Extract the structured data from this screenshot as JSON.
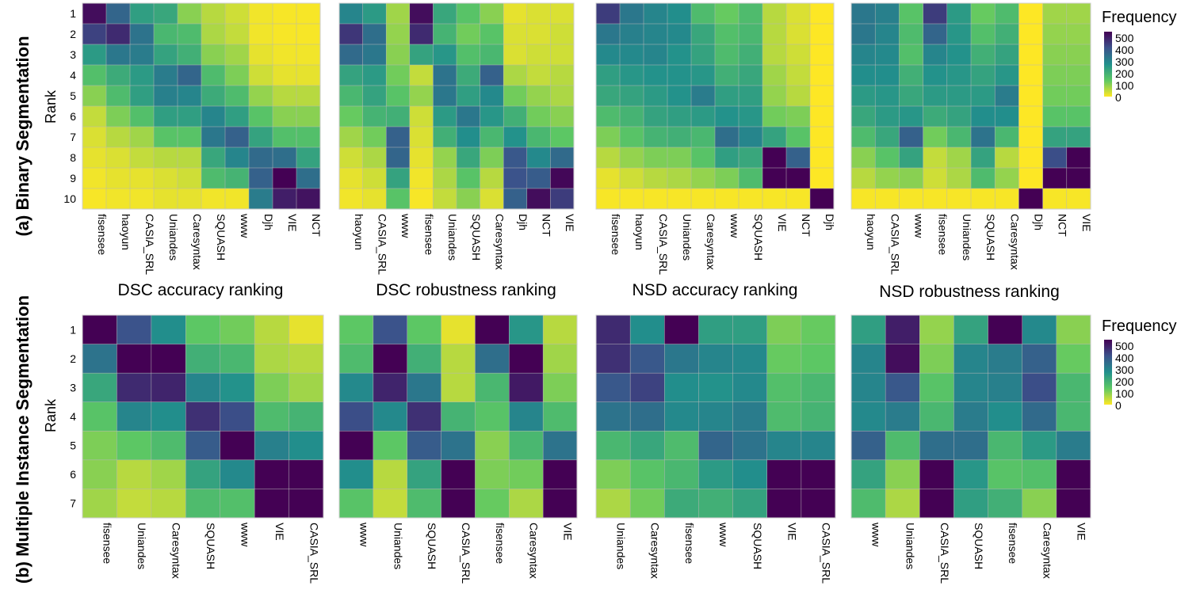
{
  "figure": {
    "row_labels": [
      "(a) Binary Segmentation",
      "(b) Multiple Instance Segmentation"
    ],
    "y_axis_label": "Rank",
    "legend_title": "Frequency",
    "legend_ticks": [
      "500",
      "400",
      "300",
      "200",
      "100",
      "0"
    ],
    "column_titles": [
      "DSC accuracy ranking",
      "DSC robustness ranking",
      "NSD accuracy ranking",
      "NSD robustness ranking"
    ]
  },
  "colors": {
    "scale": [
      "#440154",
      "#3b528b",
      "#21908c",
      "#5dc863",
      "#fde725"
    ]
  },
  "chart_data": [
    {
      "type": "heatmap",
      "section": "(a) Binary Segmentation",
      "title": "DSC accuracy ranking",
      "categories": [
        "fisensee",
        "haoyun",
        "CASIA_SRL",
        "Uniandes",
        "Caresyntax",
        "SQUASH",
        "www",
        "Djh",
        "VIE",
        "NCT"
      ],
      "ranks": [
        "1",
        "2",
        "3",
        "4",
        "5",
        "6",
        "7",
        "8",
        "9",
        "10"
      ],
      "values": [
        [
          530,
          370,
          240,
          220,
          100,
          60,
          40,
          10,
          5,
          5
        ],
        [
          440,
          480,
          340,
          180,
          170,
          70,
          50,
          10,
          5,
          5
        ],
        [
          250,
          330,
          320,
          230,
          200,
          100,
          80,
          20,
          10,
          10
        ],
        [
          160,
          210,
          250,
          320,
          370,
          170,
          110,
          40,
          20,
          20
        ],
        [
          100,
          170,
          240,
          310,
          300,
          210,
          170,
          90,
          60,
          60
        ],
        [
          50,
          110,
          160,
          240,
          240,
          300,
          240,
          150,
          100,
          100
        ],
        [
          30,
          60,
          80,
          150,
          150,
          330,
          380,
          230,
          160,
          160
        ],
        [
          20,
          30,
          50,
          60,
          60,
          220,
          300,
          360,
          350,
          230
        ],
        [
          10,
          20,
          20,
          30,
          40,
          170,
          190,
          380,
          560,
          350
        ],
        [
          5,
          10,
          10,
          20,
          20,
          10,
          10,
          320,
          500,
          520
        ]
      ],
      "colorbar_range": [
        0,
        550
      ]
    },
    {
      "type": "heatmap",
      "section": "(a) Binary Segmentation",
      "title": "DSC robustness ranking",
      "categories": [
        "haoyun",
        "CASIA_SRL",
        "www",
        "fisensee",
        "Uniandes",
        "SQUASH",
        "Caresyntax",
        "Djh",
        "NCT",
        "VIE"
      ],
      "ranks": [
        "1",
        "2",
        "3",
        "4",
        "5",
        "6",
        "7",
        "8",
        "9",
        "10"
      ],
      "values": [
        [
          300,
          250,
          80,
          530,
          220,
          150,
          100,
          20,
          30,
          30
        ],
        [
          460,
          350,
          90,
          480,
          190,
          120,
          150,
          30,
          30,
          40
        ],
        [
          360,
          330,
          100,
          230,
          260,
          160,
          180,
          30,
          40,
          40
        ],
        [
          230,
          250,
          120,
          50,
          340,
          210,
          380,
          70,
          50,
          60
        ],
        [
          180,
          230,
          150,
          90,
          330,
          240,
          290,
          120,
          90,
          70
        ],
        [
          130,
          190,
          200,
          40,
          250,
          330,
          260,
          200,
          120,
          100
        ],
        [
          80,
          120,
          380,
          30,
          200,
          280,
          180,
          270,
          180,
          140
        ],
        [
          40,
          70,
          370,
          20,
          90,
          220,
          110,
          400,
          290,
          360
        ],
        [
          20,
          40,
          230,
          10,
          70,
          150,
          60,
          410,
          390,
          540
        ],
        [
          10,
          20,
          150,
          5,
          50,
          100,
          30,
          380,
          530,
          450
        ]
      ],
      "colorbar_range": [
        0,
        550
      ]
    },
    {
      "type": "heatmap",
      "section": "(a) Binary Segmentation",
      "title": "NSD accuracy ranking",
      "categories": [
        "fisensee",
        "haoyun",
        "CASIA_SRL",
        "Uniandes",
        "Caresyntax",
        "www",
        "SQUASH",
        "VIE",
        "NCT",
        "Djh"
      ],
      "ranks": [
        "1",
        "2",
        "3",
        "4",
        "5",
        "6",
        "7",
        "8",
        "9",
        "10"
      ],
      "values": [
        [
          450,
          330,
          300,
          280,
          170,
          130,
          170,
          60,
          30,
          0
        ],
        [
          330,
          310,
          300,
          290,
          220,
          160,
          180,
          60,
          30,
          0
        ],
        [
          290,
          290,
          300,
          270,
          230,
          170,
          200,
          60,
          40,
          0
        ],
        [
          240,
          260,
          270,
          270,
          260,
          200,
          220,
          80,
          50,
          0
        ],
        [
          220,
          230,
          250,
          270,
          320,
          240,
          240,
          90,
          60,
          0
        ],
        [
          170,
          190,
          230,
          240,
          250,
          270,
          260,
          120,
          110,
          0
        ],
        [
          110,
          150,
          190,
          200,
          180,
          350,
          300,
          230,
          150,
          0
        ],
        [
          60,
          90,
          110,
          110,
          150,
          240,
          220,
          560,
          380,
          0
        ],
        [
          20,
          40,
          60,
          70,
          90,
          110,
          170,
          560,
          560,
          0
        ],
        [
          5,
          5,
          5,
          5,
          5,
          5,
          5,
          5,
          5,
          560
        ]
      ],
      "colorbar_range": [
        0,
        550
      ]
    },
    {
      "type": "heatmap",
      "section": "(a) Binary Segmentation",
      "title": "NSD robustness ranking",
      "categories": [
        "haoyun",
        "CASIA_SRL",
        "www",
        "fisensee",
        "Uniandes",
        "SQUASH",
        "Caresyntax",
        "Djh",
        "NCT",
        "VIE"
      ],
      "ranks": [
        "1",
        "2",
        "3",
        "4",
        "5",
        "6",
        "7",
        "8",
        "9",
        "10"
      ],
      "values": [
        [
          330,
          310,
          150,
          450,
          250,
          130,
          170,
          0,
          80,
          80
        ],
        [
          330,
          300,
          170,
          370,
          260,
          160,
          200,
          0,
          90,
          90
        ],
        [
          300,
          290,
          160,
          300,
          270,
          200,
          230,
          0,
          100,
          100
        ],
        [
          280,
          280,
          200,
          270,
          260,
          230,
          260,
          0,
          110,
          110
        ],
        [
          250,
          260,
          220,
          250,
          250,
          250,
          320,
          0,
          120,
          120
        ],
        [
          220,
          250,
          260,
          210,
          230,
          280,
          280,
          0,
          150,
          150
        ],
        [
          170,
          220,
          380,
          120,
          180,
          340,
          180,
          0,
          230,
          230
        ],
        [
          100,
          150,
          230,
          50,
          80,
          230,
          60,
          0,
          420,
          560
        ],
        [
          60,
          90,
          100,
          40,
          70,
          170,
          90,
          0,
          560,
          560
        ],
        [
          5,
          5,
          5,
          5,
          5,
          5,
          5,
          560,
          5,
          5
        ]
      ],
      "colorbar_range": [
        0,
        550
      ]
    },
    {
      "type": "heatmap",
      "section": "(b) Multiple Instance Segmentation",
      "title": "DSC accuracy ranking",
      "categories": [
        "fisensee",
        "Uniandes",
        "Caresyntax",
        "SQUASH",
        "www",
        "VIE",
        "CASIA_SRL"
      ],
      "ranks": [
        "1",
        "2",
        "3",
        "4",
        "5",
        "6",
        "7"
      ],
      "values": [
        [
          560,
          410,
          280,
          140,
          120,
          60,
          20
        ],
        [
          340,
          560,
          560,
          200,
          180,
          70,
          60
        ],
        [
          220,
          480,
          490,
          300,
          270,
          110,
          80
        ],
        [
          150,
          300,
          280,
          470,
          420,
          170,
          190
        ],
        [
          110,
          140,
          170,
          390,
          560,
          310,
          280
        ],
        [
          100,
          60,
          80,
          230,
          290,
          560,
          560
        ],
        [
          80,
          50,
          60,
          170,
          160,
          560,
          560
        ]
      ],
      "colorbar_range": [
        0,
        550
      ]
    },
    {
      "type": "heatmap",
      "section": "(b) Multiple Instance Segmentation",
      "title": "DSC robustness ranking",
      "categories": [
        "www",
        "Uniandes",
        "SQUASH",
        "CASIA_SRL",
        "fisensee",
        "Caresyntax",
        "VIE"
      ],
      "ranks": [
        "1",
        "2",
        "3",
        "4",
        "5",
        "6",
        "7"
      ],
      "values": [
        [
          140,
          410,
          140,
          20,
          560,
          260,
          60
        ],
        [
          170,
          560,
          200,
          60,
          350,
          560,
          80
        ],
        [
          290,
          490,
          330,
          60,
          180,
          510,
          110
        ],
        [
          420,
          290,
          470,
          190,
          150,
          300,
          170
        ],
        [
          560,
          140,
          390,
          340,
          100,
          180,
          340
        ],
        [
          280,
          60,
          230,
          560,
          110,
          120,
          560
        ],
        [
          150,
          50,
          170,
          560,
          130,
          70,
          560
        ]
      ],
      "colorbar_range": [
        0,
        550
      ]
    },
    {
      "type": "heatmap",
      "section": "(b) Multiple Instance Segmentation",
      "title": "NSD accuracy ranking",
      "categories": [
        "Uniandes",
        "Caresyntax",
        "fisensee",
        "www",
        "SQUASH",
        "VIE",
        "CASIA_SRL"
      ],
      "ranks": [
        "1",
        "2",
        "3",
        "4",
        "5",
        "6",
        "7"
      ],
      "values": [
        [
          480,
          280,
          560,
          240,
          240,
          110,
          130
        ],
        [
          470,
          400,
          330,
          300,
          290,
          130,
          140
        ],
        [
          400,
          440,
          280,
          270,
          290,
          160,
          180
        ],
        [
          340,
          350,
          290,
          300,
          320,
          170,
          190
        ],
        [
          180,
          220,
          170,
          370,
          340,
          300,
          300
        ],
        [
          110,
          150,
          180,
          250,
          280,
          560,
          560
        ],
        [
          70,
          120,
          210,
          200,
          230,
          560,
          560
        ]
      ],
      "colorbar_range": [
        0,
        550
      ]
    },
    {
      "type": "heatmap",
      "section": "(b) Multiple Instance Segmentation",
      "title": "NSD robustness ranking",
      "categories": [
        "www",
        "Uniandes",
        "CASIA_SRL",
        "SQUASH",
        "fisensee",
        "Caresyntax",
        "VIE"
      ],
      "ranks": [
        "1",
        "2",
        "3",
        "4",
        "5",
        "6",
        "7"
      ],
      "values": [
        [
          240,
          500,
          90,
          230,
          560,
          290,
          100
        ],
        [
          300,
          530,
          110,
          300,
          320,
          380,
          130
        ],
        [
          300,
          400,
          150,
          300,
          310,
          420,
          180
        ],
        [
          290,
          320,
          180,
          320,
          280,
          360,
          180
        ],
        [
          380,
          170,
          350,
          350,
          180,
          250,
          320
        ],
        [
          230,
          100,
          560,
          260,
          150,
          160,
          560
        ],
        [
          170,
          70,
          560,
          240,
          200,
          100,
          560
        ]
      ],
      "colorbar_range": [
        0,
        550
      ]
    }
  ]
}
